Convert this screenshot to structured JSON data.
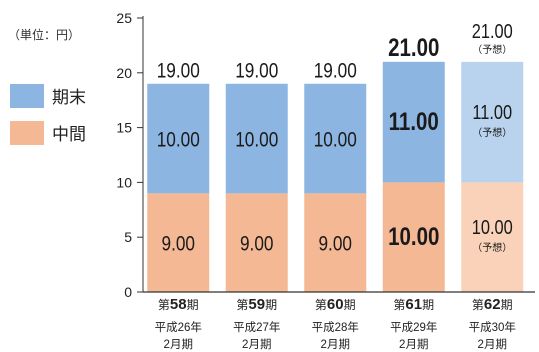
{
  "unit_label": "（単位：円）",
  "legend": [
    {
      "label": "期末",
      "color": "#8db5e2"
    },
    {
      "label": "中間",
      "color": "#f5b894"
    }
  ],
  "colors": {
    "year_end": "#8db5e2",
    "interim": "#f5b894",
    "year_end_forecast": "#b9d2ee",
    "interim_forecast": "#f9d2b9",
    "axis": "#333333"
  },
  "chart_data": {
    "type": "bar",
    "stacked": true,
    "ylim": [
      0,
      25
    ],
    "yticks": [
      0,
      5,
      10,
      15,
      20,
      25
    ],
    "categories": [
      {
        "prefix": "第",
        "num": "58",
        "suffix": "期",
        "line2": "平成26年",
        "line3": "2月期"
      },
      {
        "prefix": "第",
        "num": "59",
        "suffix": "期",
        "line2": "平成27年",
        "line3": "2月期"
      },
      {
        "prefix": "第",
        "num": "60",
        "suffix": "期",
        "line2": "平成28年",
        "line3": "2月期"
      },
      {
        "prefix": "第",
        "num": "61",
        "suffix": "期",
        "line2": "平成29年",
        "line3": "2月期"
      },
      {
        "prefix": "第",
        "num": "62",
        "suffix": "期",
        "line2": "平成30年",
        "line3": "2月期"
      }
    ],
    "series": [
      {
        "name": "中間",
        "values": [
          9.0,
          9.0,
          9.0,
          10.0,
          10.0
        ],
        "labels": [
          "9.00",
          "9.00",
          "9.00",
          "10.00",
          "10.00"
        ]
      },
      {
        "name": "期末",
        "values": [
          10.0,
          10.0,
          10.0,
          11.0,
          11.0
        ],
        "labels": [
          "10.00",
          "10.00",
          "10.00",
          "11.00",
          "11.00"
        ]
      }
    ],
    "totals": [
      19.0,
      19.0,
      19.0,
      21.0,
      21.0
    ],
    "total_labels": [
      "19.00",
      "19.00",
      "19.00",
      "21.00",
      "21.00"
    ],
    "emphasized": [
      false,
      false,
      false,
      true,
      false
    ],
    "forecast": [
      false,
      false,
      false,
      false,
      true
    ],
    "forecast_note": "（予想）"
  }
}
